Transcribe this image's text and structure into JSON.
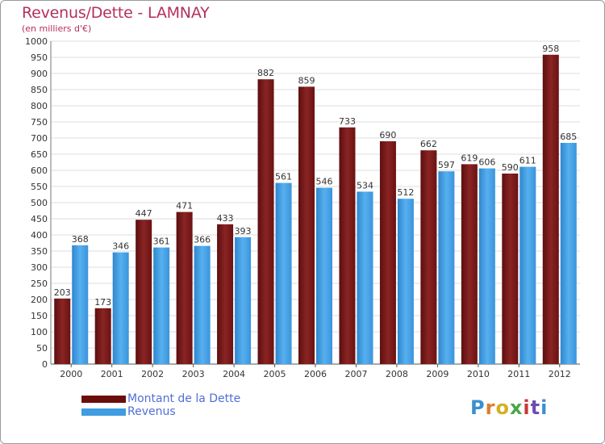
{
  "header": {
    "title": "Revenus/Dette - LAMNAY",
    "subtitle": "(en milliers d'€)"
  },
  "chart_data": {
    "type": "bar",
    "title": "Revenus/Dette - LAMNAY",
    "subtitle": "(en milliers d'€)",
    "categories": [
      "2000",
      "2001",
      "2002",
      "2003",
      "2004",
      "2005",
      "2006",
      "2007",
      "2008",
      "2009",
      "2010",
      "2011",
      "2012"
    ],
    "series": [
      {
        "name": "Montant de la Dette",
        "color": "#7a1a1a",
        "values": [
          203,
          173,
          447,
          471,
          433,
          882,
          859,
          733,
          690,
          662,
          619,
          590,
          958
        ]
      },
      {
        "name": "Revenus",
        "color": "#3f9de0",
        "values": [
          368,
          346,
          361,
          366,
          393,
          561,
          546,
          534,
          512,
          597,
          606,
          611,
          685
        ]
      }
    ],
    "ylim": [
      0,
      1000
    ],
    "ytick_step": 50,
    "grid": true,
    "legend": "bottom-left"
  },
  "legend": {
    "items": [
      {
        "label": "Montant de la Dette",
        "color": "#6b0d0d"
      },
      {
        "label": "Revenus",
        "color": "#3f9de0"
      }
    ]
  },
  "logo": {
    "text": "Proxiti"
  }
}
